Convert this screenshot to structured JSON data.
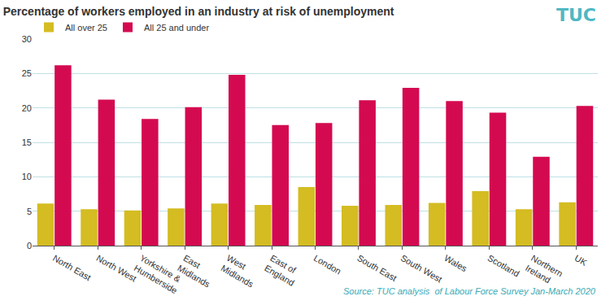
{
  "chart_data": {
    "type": "bar",
    "title": "Percentage of workers employed in an industry at risk of unemployment",
    "source": "Source: TUC analysis  of Labour Force Survey Jan-March 2020",
    "logo": "TUC",
    "categories": [
      "North East",
      "North West",
      "Yorkshire & Humberside",
      "East Midlands",
      "West Midlands",
      "East of England",
      "London",
      "South East",
      "South West",
      "Wales",
      "Scotland",
      "Northern Ireland",
      "UK"
    ],
    "series": [
      {
        "name": "All over 25",
        "color": "#d4bc22",
        "values": [
          6.1,
          5.3,
          5.1,
          5.4,
          6.1,
          5.9,
          8.5,
          5.8,
          5.9,
          6.2,
          7.9,
          5.3,
          6.3
        ]
      },
      {
        "name": "All 25 and under",
        "color": "#d40a50",
        "values": [
          26.2,
          21.2,
          18.4,
          20.1,
          24.8,
          17.5,
          17.8,
          21.1,
          22.9,
          21.0,
          19.3,
          12.9,
          20.3
        ]
      }
    ],
    "ylim": [
      0,
      30
    ],
    "yticks": [
      0,
      5,
      10,
      15,
      20,
      25,
      30
    ],
    "grid": true,
    "legend": "top-left"
  }
}
